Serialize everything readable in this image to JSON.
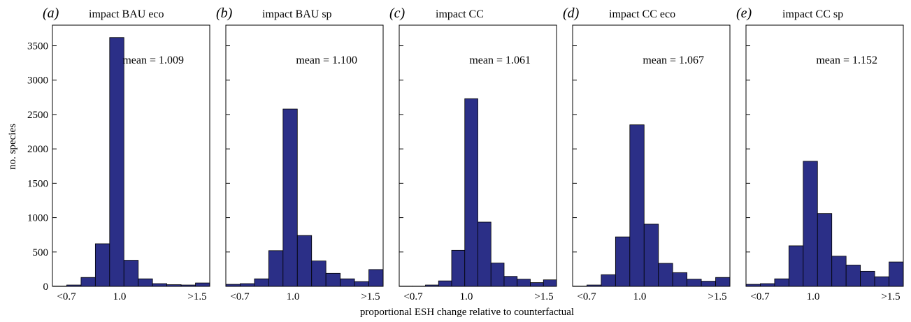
{
  "figure": {
    "xlabel": "proportional ESH change relative to counterfactual",
    "ylabel": "no. species"
  },
  "chart_data": {
    "type": "bar",
    "xlabel": "proportional ESH change relative to counterfactual",
    "ylabel": "no. species",
    "ylim": [
      0,
      3800
    ],
    "yticks": [
      "0",
      "500",
      "1000",
      "1500",
      "2000",
      "2500",
      "3000",
      "3500"
    ],
    "xticks": [
      "<0.7",
      "1.0",
      ">1.5"
    ],
    "bar_color": "#2b2f87",
    "bar_edge_color": "#000000",
    "panels": [
      {
        "letter": "(a)",
        "title": "impact BAU eco",
        "mean_label": "mean = 1.009",
        "values": [
          5,
          20,
          130,
          620,
          3620,
          380,
          110,
          40,
          25,
          20,
          50
        ]
      },
      {
        "letter": "(b)",
        "title": "impact BAU sp",
        "mean_label": "mean = 1.100",
        "values": [
          30,
          40,
          110,
          520,
          2580,
          740,
          370,
          190,
          110,
          70,
          245
        ]
      },
      {
        "letter": "(c)",
        "title": "impact CC",
        "mean_label": "mean = 1.061",
        "values": [
          5,
          5,
          20,
          80,
          525,
          2730,
          935,
          340,
          145,
          105,
          55,
          95
        ]
      },
      {
        "letter": "(d)",
        "title": "impact CC eco",
        "mean_label": "mean = 1.067",
        "values": [
          5,
          20,
          170,
          720,
          2350,
          905,
          335,
          200,
          105,
          75,
          130
        ]
      },
      {
        "letter": "(e)",
        "title": "impact CC sp",
        "mean_label": "mean = 1.152",
        "values": [
          30,
          40,
          110,
          590,
          1820,
          1060,
          440,
          310,
          220,
          140,
          355
        ]
      }
    ]
  }
}
